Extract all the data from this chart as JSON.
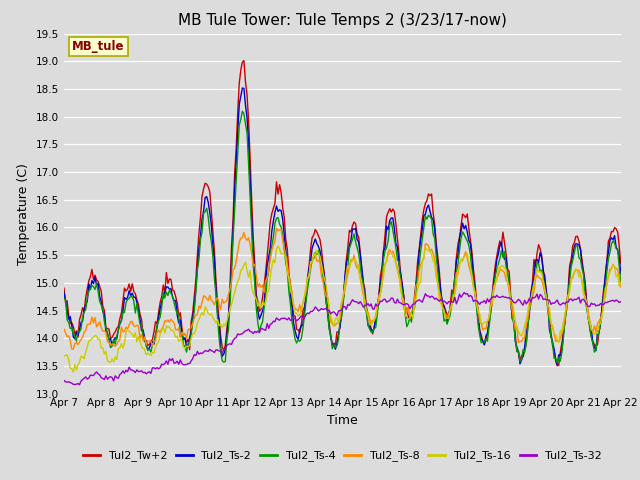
{
  "title": "MB Tule Tower: Tule Temps 2 (3/23/17-now)",
  "xlabel": "Time",
  "ylabel": "Temperature (C)",
  "ylim": [
    13.0,
    19.5
  ],
  "series_names": [
    "Tul2_Tw+2",
    "Tul2_Ts-2",
    "Tul2_Ts-4",
    "Tul2_Ts-8",
    "Tul2_Ts-16",
    "Tul2_Ts-32"
  ],
  "series_colors": [
    "#cc0000",
    "#0000cc",
    "#009900",
    "#ff8800",
    "#cccc00",
    "#9900cc"
  ],
  "x_tick_labels": [
    "Apr 7",
    "Apr 8",
    "Apr 9",
    "Apr 10",
    "Apr 11",
    "Apr 12",
    "Apr 13",
    "Apr 14",
    "Apr 15",
    "Apr 16",
    "Apr 17",
    "Apr 18",
    "Apr 19",
    "Apr 20",
    "Apr 21",
    "Apr 22"
  ],
  "bg_color": "#dcdcdc",
  "annotation_text": "MB_tule",
  "annotation_color": "#880000",
  "annotation_bg": "#ffffcc",
  "annotation_border": "#aaaa00",
  "linewidth": 1.0,
  "title_fontsize": 11,
  "tick_fontsize": 7.5,
  "ylabel_fontsize": 9,
  "xlabel_fontsize": 9,
  "legend_fontsize": 8
}
